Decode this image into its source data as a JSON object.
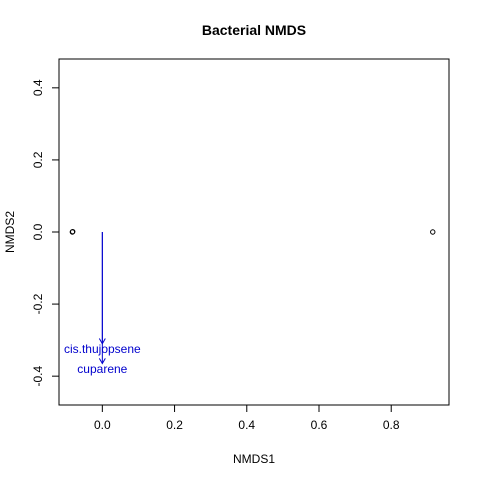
{
  "chart_data": {
    "type": "scatter",
    "title": "Bacterial NMDS",
    "xlabel": "NMDS1",
    "ylabel": "NMDS2",
    "xlim": [
      -0.12,
      0.96
    ],
    "ylim": [
      -0.48,
      0.48
    ],
    "x_ticks": [
      0.0,
      0.2,
      0.4,
      0.6,
      0.8
    ],
    "x_tick_labels": [
      "0.0",
      "0.2",
      "0.4",
      "0.6",
      "0.8"
    ],
    "y_ticks": [
      -0.4,
      -0.2,
      0.0,
      0.2,
      0.4
    ],
    "y_tick_labels": [
      "-0.4",
      "-0.2",
      "0.0",
      "0.2",
      "0.4"
    ],
    "grid": false,
    "points": [
      {
        "x": -0.083,
        "y": 0.0
      },
      {
        "x": -0.082,
        "y": 0.001
      },
      {
        "x": 0.915,
        "y": 0.0
      }
    ],
    "vectors": [
      {
        "label": "cis.thujopsene",
        "x0": 0.0,
        "y0": 0.0,
        "x1": 0.0,
        "y1": -0.31,
        "label_y": -0.325
      },
      {
        "label": "cuparene",
        "x0": 0.0,
        "y0": 0.0,
        "x1": 0.0,
        "y1": -0.365,
        "label_y": -0.38
      }
    ],
    "colors": {
      "points": "#000000",
      "vectors": "#0000cd",
      "axes": "#000000"
    }
  }
}
